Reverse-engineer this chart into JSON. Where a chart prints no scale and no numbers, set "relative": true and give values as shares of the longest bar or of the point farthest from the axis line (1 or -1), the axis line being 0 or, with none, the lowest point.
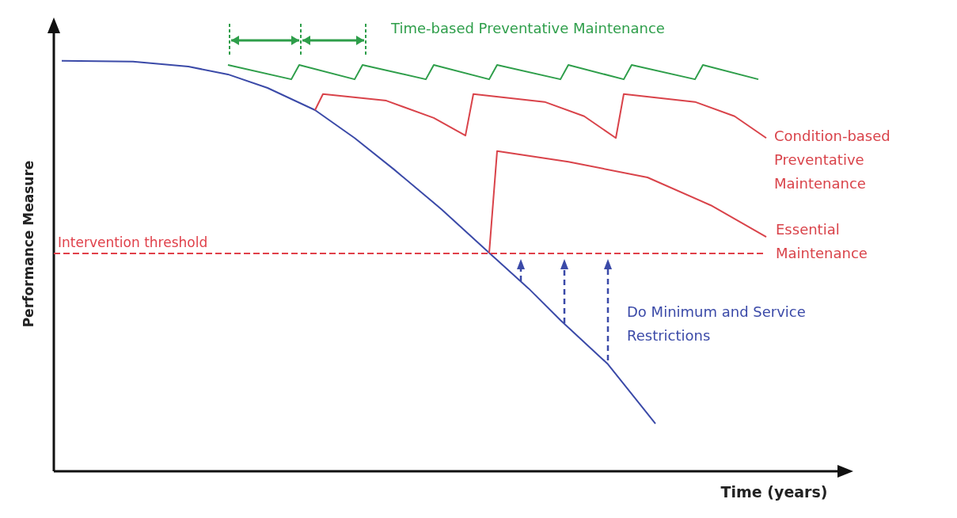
{
  "chart_data": {
    "type": "line",
    "relative": true,
    "xlabel": "Time (years)",
    "ylabel": "Performance Measure",
    "legend": false,
    "grid": false,
    "marker": "none",
    "line_style": "solid",
    "categories": [
      null,
      null,
      null,
      null,
      null,
      null,
      null,
      null,
      null,
      null,
      null,
      null,
      null,
      null,
      null,
      null,
      null,
      null,
      null,
      null,
      null,
      null,
      null,
      null,
      null,
      null,
      null,
      null,
      null,
      null,
      null,
      null,
      null,
      null,
      null,
      null,
      null,
      null,
      null,
      null,
      null,
      null,
      null,
      null,
      null,
      null,
      null,
      null,
      null,
      null,
      null,
      null,
      null,
      null,
      null,
      null,
      null,
      null,
      null,
      null,
      null,
      null,
      null,
      null,
      null,
      null,
      null,
      null,
      null,
      null,
      null,
      null,
      null,
      null,
      null,
      null,
      null,
      null,
      null,
      null,
      null,
      null,
      null,
      null,
      null,
      null,
      null,
      null,
      null,
      null,
      null,
      null,
      null,
      null,
      null
    ],
    "series": [
      {
        "name": "Do Minimum and Service Restrictions",
        "color": "#3b4aa8",
        "values": [
          null,
          1.0,
          null,
          null,
          null,
          null,
          null,
          null,
          null,
          null,
          0.998,
          null,
          null,
          null,
          null,
          null,
          null,
          0.986,
          null,
          null,
          null,
          null,
          0.967,
          null,
          null,
          null,
          null,
          0.934,
          null,
          null,
          null,
          null,
          null,
          0.88,
          null,
          null,
          null,
          null,
          0.812,
          null,
          null,
          null,
          null,
          0.735,
          null,
          null,
          null,
          null,
          null,
          0.638,
          null,
          null,
          null,
          null,
          null,
          0.532,
          null,
          null,
          null,
          null,
          0.445,
          null,
          null,
          null,
          0.368,
          null,
          null,
          null,
          null,
          null,
          0.261,
          null,
          null,
          null,
          null,
          null,
          0.116,
          null,
          null,
          null,
          null,
          null,
          null,
          null,
          null,
          null,
          null,
          null,
          null,
          null,
          null,
          null,
          null,
          null,
          null
        ]
      },
      {
        "name": "Time-based Preventative Maintenance",
        "color": "#2e9e4a",
        "values": [
          null,
          null,
          null,
          null,
          null,
          null,
          null,
          null,
          null,
          null,
          null,
          null,
          null,
          null,
          null,
          null,
          null,
          null,
          null,
          null,
          null,
          null,
          0.99,
          null,
          null,
          null,
          null,
          null,
          null,
          null,
          0.955,
          0.99,
          null,
          null,
          null,
          null,
          null,
          null,
          0.955,
          0.99,
          null,
          null,
          null,
          null,
          null,
          null,
          null,
          0.955,
          0.99,
          null,
          null,
          null,
          null,
          null,
          null,
          0.955,
          0.99,
          null,
          null,
          null,
          null,
          null,
          null,
          null,
          0.955,
          0.99,
          null,
          null,
          null,
          null,
          null,
          null,
          0.955,
          0.99,
          null,
          null,
          null,
          null,
          null,
          null,
          null,
          0.955,
          0.99,
          null,
          null,
          null,
          null,
          null,
          null,
          0.955,
          null,
          null,
          null,
          null,
          null
        ]
      },
      {
        "name": "Condition-based Preventative Maintenance",
        "color": "#d9434a",
        "values": [
          null,
          null,
          null,
          null,
          null,
          null,
          null,
          null,
          null,
          null,
          null,
          null,
          null,
          null,
          null,
          null,
          null,
          null,
          null,
          null,
          null,
          null,
          null,
          null,
          null,
          null,
          null,
          null,
          null,
          null,
          null,
          null,
          null,
          0.88,
          0.919,
          null,
          null,
          null,
          null,
          null,
          null,
          null,
          0.903,
          null,
          null,
          null,
          null,
          null,
          0.861,
          null,
          null,
          null,
          0.818,
          0.919,
          null,
          null,
          null,
          null,
          null,
          null,
          null,
          null,
          0.9,
          null,
          null,
          null,
          null,
          0.865,
          null,
          null,
          null,
          0.812,
          0.919,
          null,
          null,
          null,
          null,
          null,
          null,
          null,
          null,
          0.9,
          null,
          null,
          null,
          null,
          0.865,
          null,
          null,
          null,
          0.812,
          null,
          null,
          null,
          null
        ]
      },
      {
        "name": "Essential Maintenance",
        "color": "#d9434a",
        "values": [
          null,
          null,
          null,
          null,
          null,
          null,
          null,
          null,
          null,
          null,
          null,
          null,
          null,
          null,
          null,
          null,
          null,
          null,
          null,
          null,
          null,
          null,
          null,
          null,
          null,
          null,
          null,
          null,
          null,
          null,
          null,
          null,
          null,
          null,
          null,
          null,
          null,
          null,
          null,
          null,
          null,
          null,
          null,
          null,
          null,
          null,
          null,
          null,
          null,
          null,
          null,
          null,
          null,
          null,
          null,
          0.532,
          0.78,
          null,
          null,
          null,
          null,
          null,
          null,
          null,
          null,
          0.754,
          null,
          null,
          null,
          null,
          null,
          null,
          null,
          null,
          null,
          0.716,
          null,
          null,
          null,
          null,
          null,
          null,
          null,
          0.648,
          null,
          null,
          null,
          null,
          null,
          null,
          0.571,
          null,
          null,
          null,
          null
        ]
      }
    ],
    "ref_lines": [
      {
        "axis": "y",
        "value": 0.532,
        "label": "Intervention threshold",
        "color": "#e0404a",
        "line_style": "dashed"
      }
    ]
  }
}
